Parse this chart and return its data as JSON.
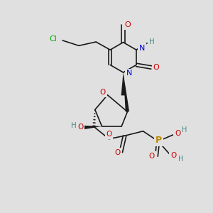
{
  "background_color": "#e0e0e0",
  "bond_color": "#1a1a1a",
  "figsize": [
    3.0,
    3.0
  ],
  "dpi": 100,
  "colors": {
    "Cl": "#00aa00",
    "O": "#cc0000",
    "N": "#0000cc",
    "H": "#448888",
    "P": "#bb8800",
    "C": "#1a1a1a"
  },
  "lw": 1.2
}
